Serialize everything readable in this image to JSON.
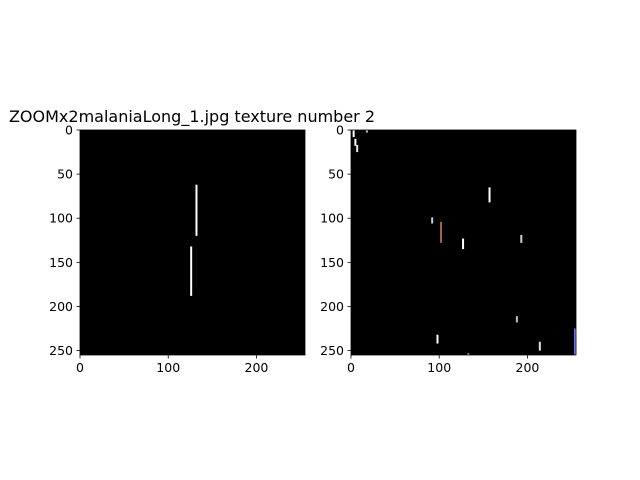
{
  "chart_data": [
    {
      "type": "heatmap",
      "title": "ZOOMx2malaniaLong_1.jpg texture number 2",
      "xlim": [
        0,
        255
      ],
      "ylim": [
        255,
        0
      ],
      "xticks": [
        0,
        100,
        200
      ],
      "yticks": [
        0,
        50,
        100,
        150,
        200,
        250
      ],
      "background": "#000000",
      "marks": [
        {
          "kind": "line",
          "x": 132,
          "y0": 62,
          "y1": 120,
          "color": "#ffffff"
        },
        {
          "kind": "line",
          "x": 126,
          "y0": 132,
          "y1": 188,
          "color": "#ffffff"
        }
      ]
    },
    {
      "type": "heatmap",
      "title": "",
      "xlim": [
        0,
        255
      ],
      "ylim": [
        255,
        0
      ],
      "xticks": [
        0,
        100,
        200
      ],
      "yticks": [
        0,
        50,
        100,
        150,
        200,
        250
      ],
      "background": "#000000",
      "marks": [
        {
          "kind": "line",
          "x": 3,
          "y0": 0,
          "y1": 8,
          "color": "#ffffff"
        },
        {
          "kind": "line",
          "x": 5,
          "y0": 10,
          "y1": 18,
          "color": "#ffffff"
        },
        {
          "kind": "line",
          "x": 7,
          "y0": 17,
          "y1": 25,
          "color": "#e6e6e6"
        },
        {
          "kind": "line",
          "x": 18,
          "y0": 0,
          "y1": 3,
          "color": "#d0b0c0"
        },
        {
          "kind": "line",
          "x": 157,
          "y0": 65,
          "y1": 82,
          "color": "#ffffff"
        },
        {
          "kind": "line",
          "x": 92,
          "y0": 99,
          "y1": 106,
          "color": "#c8c8e0"
        },
        {
          "kind": "line",
          "x": 102,
          "y0": 104,
          "y1": 128,
          "color": "#a06050"
        },
        {
          "kind": "line",
          "x": 127,
          "y0": 123,
          "y1": 135,
          "color": "#ffffff"
        },
        {
          "kind": "line",
          "x": 193,
          "y0": 119,
          "y1": 128,
          "color": "#d0d0d0"
        },
        {
          "kind": "line",
          "x": 188,
          "y0": 211,
          "y1": 218,
          "color": "#c0c0d0"
        },
        {
          "kind": "line",
          "x": 98,
          "y0": 232,
          "y1": 242,
          "color": "#ffffff"
        },
        {
          "kind": "line",
          "x": 214,
          "y0": 240,
          "y1": 250,
          "color": "#e0e0e0"
        },
        {
          "kind": "line",
          "x": 254,
          "y0": 225,
          "y1": 255,
          "color": "#8080ff"
        },
        {
          "kind": "line",
          "x": 133,
          "y0": 253,
          "y1": 255,
          "color": "#c0a0a0"
        }
      ]
    }
  ]
}
